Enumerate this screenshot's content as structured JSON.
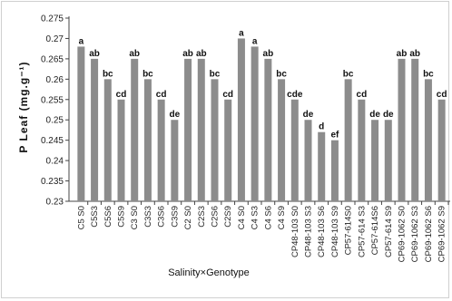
{
  "chart_data": {
    "type": "bar",
    "ylabel": "P Leaf (mg.g⁻¹)",
    "xlabel": "Salinity×Genotype",
    "ylim": [
      0.23,
      0.275
    ],
    "yticks": [
      "0.23",
      "0.235",
      "0.24",
      "0.245",
      "0.25",
      "0.255",
      "0.26",
      "0.265",
      "0.27",
      "0.275"
    ],
    "grid": false,
    "bar_color": "#8c8c8c",
    "categories": [
      "C5 S0",
      "C5S3",
      "C5S6",
      "C5S9",
      "C3 S0",
      "C3S3",
      "C3S6",
      "C3S9",
      "C2 S0",
      "C2S3",
      "C2S6",
      "C2S9",
      "C4 S0",
      "C4 S3",
      "C4 S6",
      "C4 S9",
      "CP48-103 S0",
      "CP48-103 S3",
      "CP48-103 S6",
      "CP48-103 S9",
      "CP57-614S0",
      "CP57-614 S3",
      "CP57-614S6",
      "CP57-614 S9",
      "CP69-1062 S0",
      "CP69-1062 S3",
      "CP69-1062 S6",
      "CP69-1062 S9"
    ],
    "values": [
      0.268,
      0.265,
      0.26,
      0.255,
      0.265,
      0.26,
      0.255,
      0.25,
      0.265,
      0.265,
      0.26,
      0.255,
      0.27,
      0.268,
      0.265,
      0.26,
      0.255,
      0.25,
      0.247,
      0.245,
      0.26,
      0.255,
      0.25,
      0.25,
      0.265,
      0.265,
      0.26,
      0.255
    ],
    "data_labels": [
      "a",
      "ab",
      "bc",
      "cd",
      "ab",
      "bc",
      "cd",
      "de",
      "ab",
      "ab",
      "bc",
      "cd",
      "a",
      "a",
      "ab",
      "bc",
      "cde",
      "de",
      "d",
      "ef",
      "bc",
      "cd",
      "de",
      "de",
      "ab",
      "ab",
      "bc",
      "cd"
    ]
  }
}
